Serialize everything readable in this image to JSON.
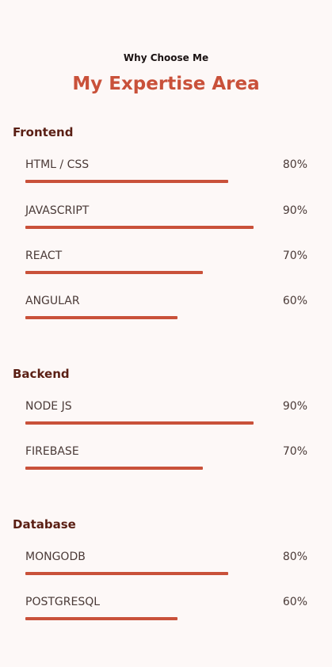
{
  "header": {
    "eyebrow": "Why Choose Me",
    "title": "My Expertise Area"
  },
  "colors": {
    "accent": "#c9513a",
    "heading": "#5a1f14",
    "background": "#fdf8f7"
  },
  "sections": [
    {
      "title": "Frontend",
      "skills": [
        {
          "name": "HTML / CSS",
          "percent_label": "80%",
          "level": 0.8
        },
        {
          "name": "JAVASCRIPT",
          "percent_label": "90%",
          "level": 0.9
        },
        {
          "name": "REACT",
          "percent_label": "70%",
          "level": 0.7
        },
        {
          "name": "ANGULAR",
          "percent_label": "60%",
          "level": 0.6
        }
      ]
    },
    {
      "title": "Backend",
      "skills": [
        {
          "name": "NODE JS",
          "percent_label": "90%",
          "level": 0.9
        },
        {
          "name": "FIREBASE",
          "percent_label": "70%",
          "level": 0.7
        }
      ]
    },
    {
      "title": "Database",
      "skills": [
        {
          "name": "MONGODB",
          "percent_label": "80%",
          "level": 0.8
        },
        {
          "name": "POSTGRESQL",
          "percent_label": "60%",
          "level": 0.6
        }
      ]
    }
  ]
}
